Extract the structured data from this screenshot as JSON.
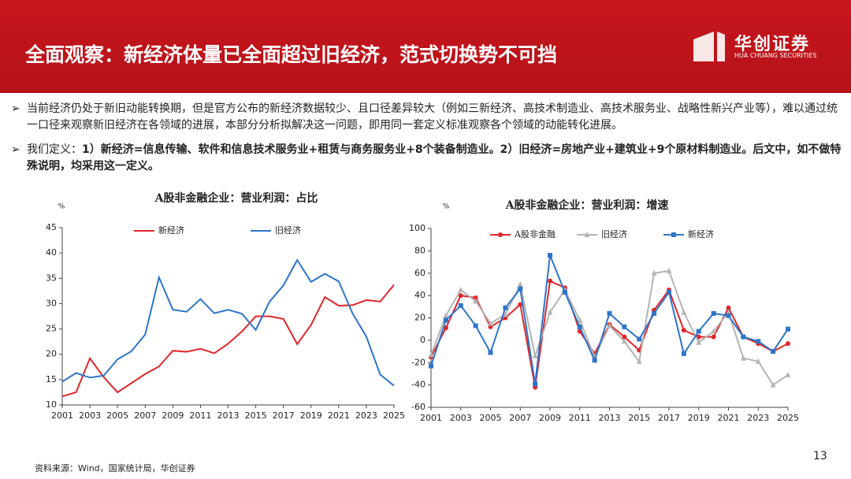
{
  "header": {
    "title": "全面观察：新经济体量已全面超过旧经济，范式切换势不可挡",
    "logo": "华创证券",
    "logo_en": "HUA CHUANG SECURITIES"
  },
  "bullets": [
    {
      "text": "当前经济仍处于新旧动能转换期，但是官方公布的新经济数据较少、且口径差异较大（例如三新经济、高技术制造业、高技术服务业、战略性新兴产业等），难以通过统一口径来观察新旧经济在各领域的进展，本部分分析拟解决这一问题，即用同一套定义标准观察各个领域的动能转化进展。"
    },
    {
      "lead": "我们定义：",
      "bold": "1）新经济=信息传输、软件和信息技术服务业+租赁与商务服务业+8个装备制造业。2）旧经济=房地产业+建筑业+9个原材料制造业。后文中，如不做特殊说明，均采用这一定义。"
    }
  ],
  "chart_data": [
    {
      "type": "line",
      "title": "A股非金融企业：营业利润：占比",
      "y_unit": "%",
      "x": [
        2001,
        2002,
        2003,
        2004,
        2005,
        2006,
        2007,
        2008,
        2009,
        2010,
        2011,
        2012,
        2013,
        2014,
        2015,
        2016,
        2017,
        2018,
        2019,
        2020,
        2021,
        2022,
        2023,
        2024,
        2025
      ],
      "xlim": [
        2001,
        2025
      ],
      "xticks": [
        2001,
        2003,
        2005,
        2007,
        2009,
        2011,
        2013,
        2015,
        2017,
        2019,
        2021,
        2023,
        2025
      ],
      "ylim": [
        10,
        45
      ],
      "yticks": [
        10,
        15,
        20,
        25,
        30,
        35,
        40,
        45
      ],
      "series": [
        {
          "name": "新经济",
          "color": "#e0262b",
          "values": [
            11.7,
            12.5,
            19.2,
            15.5,
            12.5,
            14.3,
            16.1,
            17.6,
            20.7,
            20.5,
            21.1,
            20.2,
            22.1,
            24.5,
            27.5,
            27.5,
            27.0,
            22.0,
            25.8,
            31.3,
            29.6,
            29.7,
            30.7,
            30.4,
            33.7
          ]
        },
        {
          "name": "旧经济",
          "color": "#2e75c8",
          "values": [
            14.6,
            16.3,
            15.4,
            15.8,
            19.0,
            20.6,
            23.9,
            35.2,
            28.8,
            28.4,
            30.9,
            28.1,
            28.8,
            28.0,
            24.8,
            30.4,
            33.6,
            38.6,
            34.3,
            35.9,
            34.4,
            28.1,
            23.5,
            16.0,
            13.8
          ]
        }
      ]
    },
    {
      "type": "line",
      "title": "A股非金融企业：营业利润：增速",
      "y_unit": "%",
      "x": [
        2001,
        2002,
        2003,
        2004,
        2005,
        2006,
        2007,
        2008,
        2009,
        2010,
        2011,
        2012,
        2013,
        2014,
        2015,
        2016,
        2017,
        2018,
        2019,
        2020,
        2021,
        2022,
        2023,
        2024,
        2025
      ],
      "xlim": [
        2001,
        2025
      ],
      "xticks": [
        2001,
        2003,
        2005,
        2007,
        2009,
        2011,
        2013,
        2015,
        2017,
        2019,
        2021,
        2023,
        2025
      ],
      "ylim": [
        -60,
        100
      ],
      "yticks": [
        -60,
        -40,
        -20,
        0,
        20,
        40,
        60,
        80,
        100
      ],
      "series": [
        {
          "name": "A股非金融",
          "color": "#e0262b",
          "marker": "circle",
          "values": [
            -15,
            11,
            40,
            38,
            12,
            20,
            32,
            -42,
            53,
            47,
            8,
            -12,
            14,
            3,
            -9,
            27,
            45,
            9,
            3,
            3,
            29,
            3,
            -3,
            -10,
            -3
          ]
        },
        {
          "name": "旧经济",
          "color": "#b4b4b4",
          "marker": "triangle",
          "values": [
            -13,
            22,
            45,
            35,
            15,
            23,
            50,
            -14,
            25,
            45,
            18,
            -15,
            13,
            -1,
            -19,
            60,
            62,
            25,
            -2,
            8,
            25,
            -16,
            -19,
            -40,
            -31
          ]
        },
        {
          "name": "新经济",
          "color": "#2e75c8",
          "marker": "square",
          "values": [
            -23,
            18,
            31,
            13,
            -11,
            29,
            46,
            -39,
            76,
            43,
            12,
            -18,
            24,
            12,
            1,
            24,
            43,
            -12,
            8,
            24,
            22,
            3,
            -1,
            -10,
            10
          ]
        }
      ]
    }
  ],
  "source": "资料来源：Wind，国家统计局，华创证券",
  "page_number": "13"
}
